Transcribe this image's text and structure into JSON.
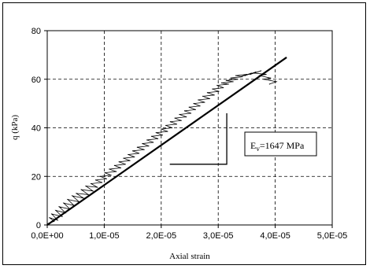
{
  "chart_data": {
    "type": "scatter",
    "title": "",
    "xlabel": "Axial strain",
    "ylabel": "q (kPa)",
    "xlim": [
      0,
      5e-05
    ],
    "ylim": [
      0,
      80
    ],
    "x_ticks": [
      "0,0E+00",
      "1,0E-05",
      "2,0E-05",
      "3,0E-05",
      "4,0E-05",
      "5,0E-05"
    ],
    "y_ticks": [
      "0",
      "20",
      "40",
      "60",
      "80"
    ],
    "grid": "dashed",
    "legend": "none",
    "annotation": {
      "symbol": "E",
      "subscript": "v",
      "text": "=1647 MPa"
    },
    "fit_line": {
      "x": [
        0,
        4.2e-05
      ],
      "y": [
        0,
        69
      ]
    },
    "series": [
      {
        "x": [
          0.0,
          1.2e-06,
          4e-07,
          1.8e-06,
          8e-07,
          2.6e-06,
          1.5e-06,
          3.2e-06,
          2.1e-06,
          4e-06,
          2.9e-06,
          4.7e-06,
          3.6e-06,
          5.6e-06,
          4.4e-06,
          6.4e-06,
          5.1e-06,
          7.2e-06,
          6e-06,
          8e-06,
          6.8e-06,
          8.8e-06,
          7.7e-06,
          9.6e-06,
          8.5e-06,
          1.04e-05,
          9.3e-06,
          1.12e-05,
          1.01e-05,
          1.21e-05,
          1.09e-05,
          1.29e-05,
          1.18e-05,
          1.37e-05,
          1.26e-05,
          1.45e-05,
          1.34e-05,
          1.53e-05,
          1.42e-05,
          1.61e-05,
          1.5e-05,
          1.7e-05,
          1.58e-05,
          1.78e-05,
          1.67e-05,
          1.86e-05,
          1.75e-05,
          1.94e-05,
          1.83e-05,
          2.02e-05,
          1.91e-05,
          2.11e-05,
          2e-05,
          2.19e-05,
          2.08e-05,
          2.27e-05,
          2.16e-05,
          2.35e-05,
          2.24e-05,
          2.44e-05,
          2.32e-05,
          2.52e-05,
          2.41e-05,
          2.6e-05,
          2.49e-05,
          2.68e-05,
          2.57e-05,
          2.76e-05,
          2.65e-05,
          2.85e-05,
          2.73e-05,
          2.93e-05,
          2.81e-05,
          3.01e-05,
          2.9e-05,
          3.09e-05,
          2.98e-05,
          3.18e-05,
          3.06e-05,
          3.26e-05,
          3.14e-05,
          3.34e-05,
          3.22e-05,
          3.42e-05,
          3.31e-05,
          3.5e-05,
          3.39e-05,
          3.58e-05,
          3.47e-05,
          3.66e-05,
          3.56e-05,
          3.75e-05,
          3.64e-05,
          3.84e-05,
          3.72e-05,
          3.92e-05,
          3.8e-05,
          4.02e-05,
          3.9e-05
        ],
        "y": [
          0.5,
          1.5,
          3.0,
          2.0,
          4.5,
          3.5,
          6.0,
          5.0,
          7.5,
          6.5,
          9.0,
          8.0,
          10.5,
          9.5,
          12.0,
          11.0,
          13.0,
          12.5,
          14.5,
          14.0,
          16.0,
          15.5,
          17.0,
          17.5,
          18.5,
          19.0,
          20.0,
          20.5,
          21.5,
          22.0,
          23.0,
          23.5,
          24.5,
          25.0,
          26.0,
          26.5,
          27.5,
          28.0,
          29.0,
          29.5,
          30.5,
          31.0,
          32.0,
          32.5,
          33.5,
          34.0,
          35.0,
          35.5,
          36.5,
          37.0,
          38.0,
          38.5,
          39.5,
          40.0,
          41.0,
          41.5,
          42.5,
          43.0,
          44.0,
          44.5,
          45.5,
          46.0,
          47.0,
          47.5,
          48.5,
          49.0,
          50.0,
          50.5,
          51.5,
          52.0,
          53.0,
          53.5,
          54.5,
          55.0,
          56.0,
          56.5,
          57.5,
          58.0,
          58.5,
          59.0,
          59.5,
          60.0,
          60.5,
          61.0,
          61.5,
          62.0,
          61.0,
          62.5,
          61.5,
          63.0,
          62.0,
          63.5,
          62.5,
          62.0,
          61.5,
          60.5,
          60.0,
          59.0,
          58.0
        ]
      }
    ]
  }
}
